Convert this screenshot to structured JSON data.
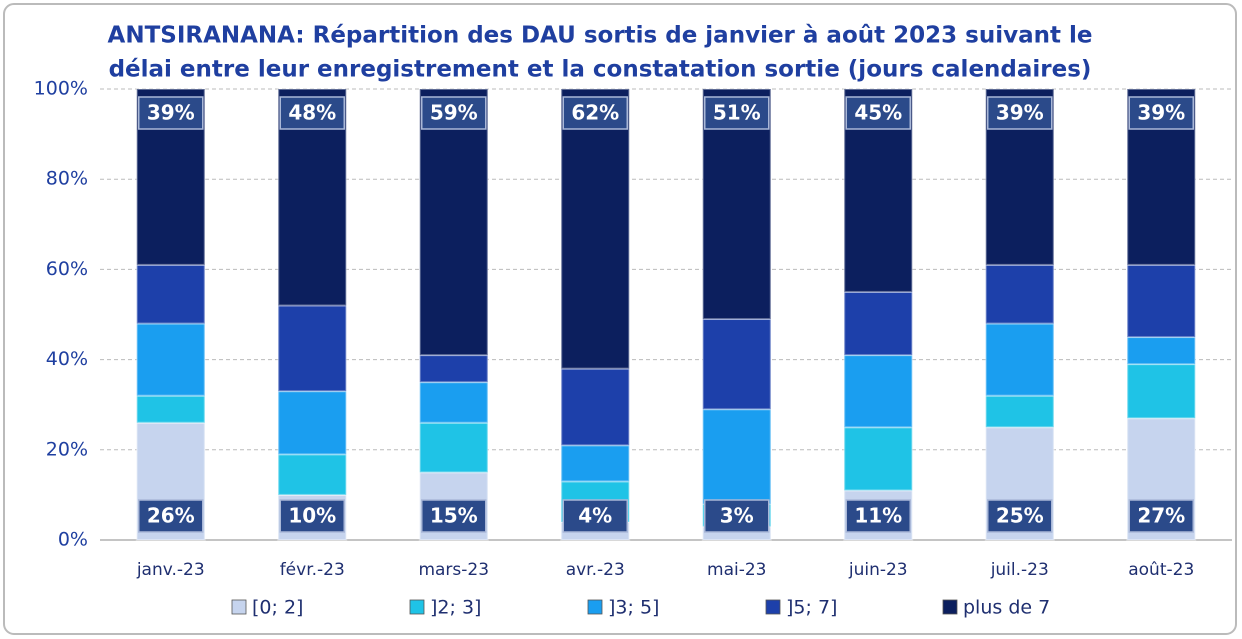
{
  "chart_data": {
    "type": "stacked_bar",
    "title": [
      "ANTSIRANANA: Répartition des DAU sortis de janvier à août 2023 suivant le",
      "délai entre leur enregistrement et la constatation sortie (jours calendaires)"
    ],
    "categories": [
      "janv.-23",
      "févr.-23",
      "mars-23",
      "avr.-23",
      "mai-23",
      "juin-23",
      "juil.-23",
      "août-23"
    ],
    "series": [
      {
        "name": "[0; 2]",
        "color": "#c6d4ee",
        "values": [
          26,
          10,
          15,
          4,
          3,
          11,
          25,
          27
        ],
        "value_labels": [
          "26%",
          "10%",
          "15%",
          "4%",
          "3%",
          "11%",
          "25%",
          "27%"
        ]
      },
      {
        "name": "]2; 3]",
        "color": "#1fc3e6",
        "values": [
          6,
          9,
          11,
          9,
          5,
          14,
          7,
          12
        ]
      },
      {
        "name": "]3; 5]",
        "color": "#1a9ef0",
        "values": [
          16,
          14,
          9,
          8,
          21,
          16,
          16,
          6
        ]
      },
      {
        "name": "]5; 7]",
        "color": "#1d40aa",
        "values": [
          13,
          19,
          6,
          17,
          20,
          14,
          13,
          16
        ]
      },
      {
        "name": "plus de 7",
        "color": "#0c1f5e",
        "values": [
          39,
          48,
          59,
          62,
          51,
          45,
          39,
          39
        ],
        "value_labels": [
          "39%",
          "48%",
          "59%",
          "62%",
          "51%",
          "45%",
          "39%",
          "39%"
        ]
      }
    ],
    "ylim": [
      0,
      100
    ],
    "yticks": [
      {
        "value": 0,
        "label": "0%"
      },
      {
        "value": 20,
        "label": "20%"
      },
      {
        "value": 40,
        "label": "40%"
      },
      {
        "value": 60,
        "label": "60%"
      },
      {
        "value": 80,
        "label": "80%"
      },
      {
        "value": 100,
        "label": "100%"
      }
    ],
    "grid": true,
    "legend": "bottom"
  }
}
